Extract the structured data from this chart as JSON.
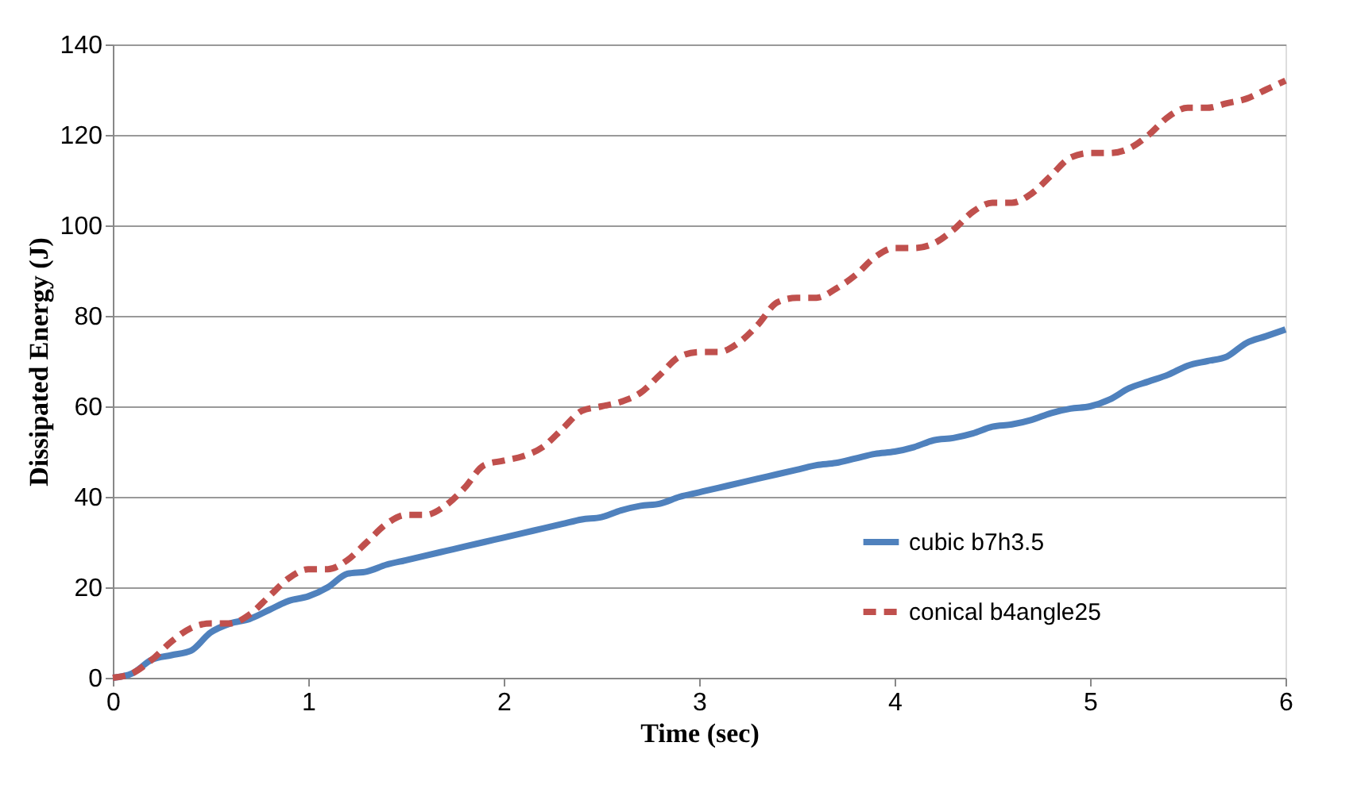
{
  "chart_data": {
    "type": "line",
    "xlabel": "Time (sec)",
    "ylabel": "Dissipated Energy (J)",
    "x": [
      0,
      0.1,
      0.2,
      0.3,
      0.4,
      0.5,
      0.6,
      0.7,
      0.8,
      0.9,
      1,
      1.1,
      1.2,
      1.3,
      1.4,
      1.5,
      1.6,
      1.7,
      1.8,
      1.9,
      2,
      2.1,
      2.2,
      2.3,
      2.4,
      2.5,
      2.6,
      2.7,
      2.8,
      2.9,
      3,
      3.1,
      3.2,
      3.3,
      3.4,
      3.5,
      3.6,
      3.7,
      3.8,
      3.9,
      4,
      4.1,
      4.2,
      4.3,
      4.4,
      4.5,
      4.6,
      4.7,
      4.8,
      4.9,
      5,
      5.1,
      5.2,
      5.3,
      5.4,
      5.5,
      5.6,
      5.7,
      5.8,
      5.9,
      6
    ],
    "series": [
      {
        "name": "cubic b7h3.5",
        "color": "#4f81bd",
        "line_style": "solid",
        "values": [
          0,
          1,
          4,
          5,
          6,
          10,
          12,
          13,
          15,
          17,
          18,
          20,
          23,
          23.5,
          25,
          26,
          27,
          28,
          29,
          30,
          31,
          32,
          33,
          34,
          35,
          35.5,
          37,
          38,
          38.5,
          40,
          41,
          42,
          43,
          44,
          45,
          46,
          47,
          47.5,
          48.5,
          49.5,
          50,
          51,
          52.5,
          53,
          54,
          55.5,
          56,
          57,
          58.5,
          59.5,
          60,
          61.5,
          64,
          65.5,
          67,
          69,
          70,
          71,
          74,
          75.5,
          77
        ]
      },
      {
        "name": "conical b4angle25",
        "color": "#c0504d",
        "line_style": "dashed",
        "values": [
          0,
          1,
          4,
          8,
          11,
          12,
          12,
          14,
          18,
          22,
          24,
          24,
          26,
          30,
          34,
          36,
          36,
          38,
          42,
          47,
          48,
          49,
          51,
          55,
          59,
          60,
          61,
          63,
          67,
          71,
          72,
          72,
          74,
          78,
          83,
          84,
          84,
          86,
          89,
          93,
          95,
          95,
          96,
          99,
          103,
          105,
          105,
          107,
          111,
          115,
          116,
          116,
          117,
          120,
          124,
          126,
          126,
          127,
          128,
          130,
          132
        ]
      }
    ],
    "xlim": [
      0,
      6
    ],
    "xticks": [
      0,
      1,
      2,
      3,
      4,
      5,
      6
    ],
    "ylim": [
      0,
      140
    ],
    "yticks": [
      0,
      20,
      40,
      60,
      80,
      100,
      120,
      140
    ],
    "grid": "y",
    "legend": "right",
    "marker": "none"
  }
}
